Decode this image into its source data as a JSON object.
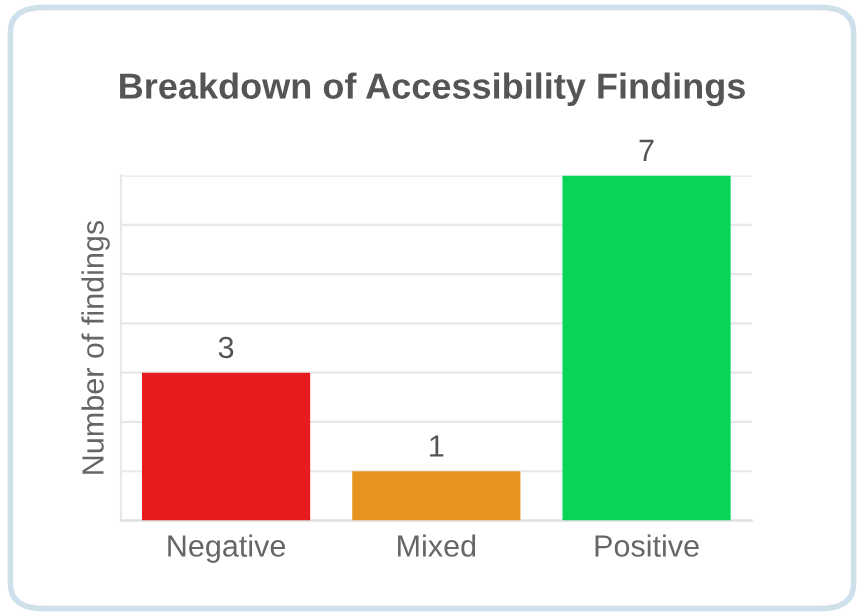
{
  "chart_data": {
    "type": "bar",
    "title": "Breakdown of Accessibility Findings",
    "ylabel": "Number of findings",
    "categories": [
      "Negative",
      "Mixed",
      "Positive"
    ],
    "values": [
      3,
      1,
      7
    ],
    "colors": [
      "#e81c1f",
      "#e89520",
      "#0ad458"
    ],
    "ylim": [
      0,
      7
    ],
    "yticks": [
      {
        "value": 0,
        "label": null
      },
      {
        "value": 1,
        "label": null
      },
      {
        "value": 2,
        "label": null
      },
      {
        "value": 3,
        "label": null
      },
      {
        "value": 4,
        "label": null
      },
      {
        "value": 5,
        "label": null
      },
      {
        "value": 6,
        "label": null
      },
      {
        "value": 7,
        "label": null
      }
    ],
    "tick_labels": "x",
    "grid": "y",
    "data_labels": true
  }
}
